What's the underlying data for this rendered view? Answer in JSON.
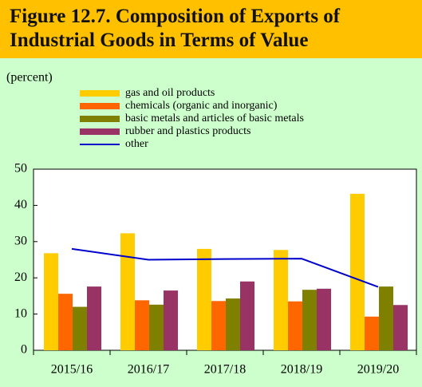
{
  "chart_data": {
    "type": "bar",
    "title": "Figure 12.7. Composition of Exports of Industrial Goods in Terms of Value",
    "y_label": "(percent)",
    "categories": [
      "2015/16",
      "2016/17",
      "2017/18",
      "2018/19",
      "2019/20"
    ],
    "series": [
      {
        "name": "gas and oil products",
        "color": "#ffcc00",
        "values": [
          26.8,
          32.3,
          28,
          27.7,
          43.2
        ]
      },
      {
        "name": "chemicals (organic and inorganic)",
        "color": "#ff6600",
        "values": [
          15.6,
          13.8,
          13.6,
          13.5,
          9.3
        ]
      },
      {
        "name": "basic metals and articles of basic metals",
        "color": "#808000",
        "values": [
          12,
          12.6,
          14.3,
          16.7,
          17.6
        ]
      },
      {
        "name": "rubber and plastics products",
        "color": "#993366",
        "values": [
          17.6,
          16.5,
          19,
          17,
          12.5
        ]
      },
      {
        "name": "other",
        "color": "#0000cc",
        "type": "line",
        "values": [
          28,
          25,
          25.2,
          25.3,
          17.5
        ]
      }
    ],
    "ylim": [
      0,
      50
    ],
    "yticks": [
      0,
      10,
      20,
      30,
      40,
      50
    ],
    "grid": false
  }
}
